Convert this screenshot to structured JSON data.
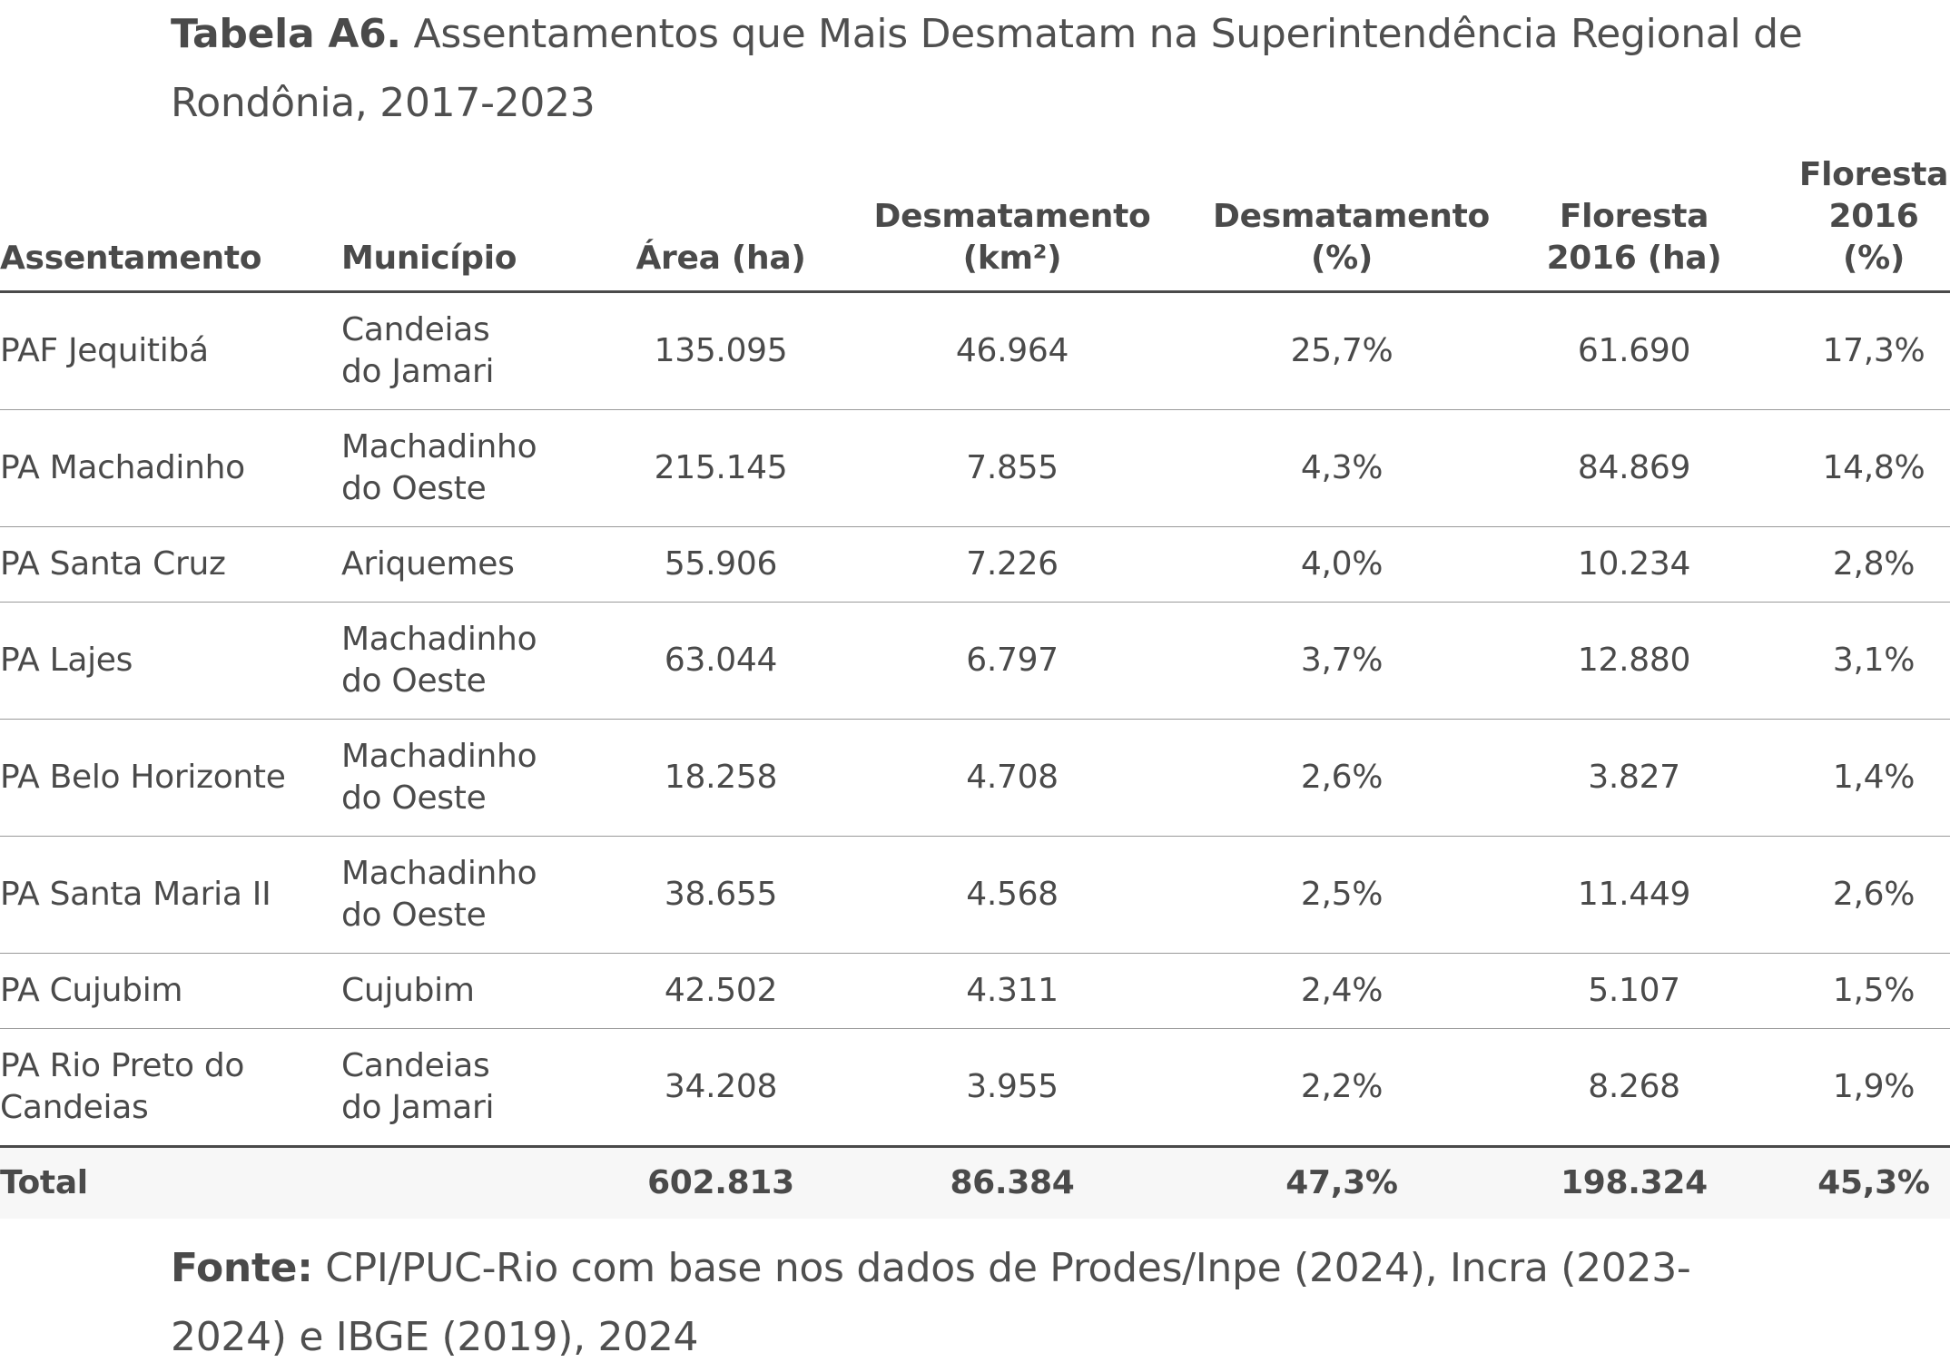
{
  "title": {
    "label": "Tabela A6.",
    "text": "Assentamentos que Mais Desmatam na Superintendência Regional de Rondônia, 2017-2023"
  },
  "table": {
    "headers": {
      "assentamento": "Assentamento",
      "municipio": "Município",
      "area": "Área (ha)",
      "desmatamento_km2_line1": "Desmatamento",
      "desmatamento_km2_line2": "(km²)",
      "desmatamento_pct_line1": "Desmatamento",
      "desmatamento_pct_line2": "(%)",
      "floresta_ha_line1": "Floresta",
      "floresta_ha_line2": "2016 (ha)",
      "floresta_pct_line1": "Floresta",
      "floresta_pct_line2": "2016 (%)"
    },
    "rows": [
      {
        "assentamento": "PAF Jequitibá",
        "municipio_1": "Candeias",
        "municipio_2": "do Jamari",
        "area": "135.095",
        "desm_km2": "46.964",
        "desm_pct": "25,7%",
        "flor_ha": "61.690",
        "flor_pct": "17,3%"
      },
      {
        "assentamento": "PA Machadinho",
        "municipio_1": "Machadinho",
        "municipio_2": "do Oeste",
        "area": "215.145",
        "desm_km2": "7.855",
        "desm_pct": "4,3%",
        "flor_ha": "84.869",
        "flor_pct": "14,8%"
      },
      {
        "assentamento": "PA Santa Cruz",
        "municipio_1": "Ariquemes",
        "municipio_2": "",
        "area": "55.906",
        "desm_km2": "7.226",
        "desm_pct": "4,0%",
        "flor_ha": "10.234",
        "flor_pct": "2,8%"
      },
      {
        "assentamento": "PA Lajes",
        "municipio_1": "Machadinho",
        "municipio_2": "do Oeste",
        "area": "63.044",
        "desm_km2": "6.797",
        "desm_pct": "3,7%",
        "flor_ha": "12.880",
        "flor_pct": "3,1%"
      },
      {
        "assentamento": "PA Belo Horizonte",
        "municipio_1": "Machadinho",
        "municipio_2": "do Oeste",
        "area": "18.258",
        "desm_km2": "4.708",
        "desm_pct": "2,6%",
        "flor_ha": "3.827",
        "flor_pct": "1,4%"
      },
      {
        "assentamento": "PA Santa Maria II",
        "municipio_1": "Machadinho",
        "municipio_2": "do Oeste",
        "area": "38.655",
        "desm_km2": "4.568",
        "desm_pct": "2,5%",
        "flor_ha": "11.449",
        "flor_pct": "2,6%"
      },
      {
        "assentamento": "PA Cujubim",
        "municipio_1": "Cujubim",
        "municipio_2": "",
        "area": "42.502",
        "desm_km2": "4.311",
        "desm_pct": "2,4%",
        "flor_ha": "5.107",
        "flor_pct": "1,5%"
      },
      {
        "assentamento_1": "PA Rio Preto do",
        "assentamento_2": "Candeias",
        "municipio_1": "Candeias",
        "municipio_2": "do Jamari",
        "area": "34.208",
        "desm_km2": "3.955",
        "desm_pct": "2,2%",
        "flor_ha": "8.268",
        "flor_pct": "1,9%"
      }
    ],
    "total": {
      "label": "Total",
      "area": "602.813",
      "desm_km2": "86.384",
      "desm_pct": "47,3%",
      "flor_ha": "198.324",
      "flor_pct": "45,3%"
    }
  },
  "source": {
    "label": "Fonte:",
    "text": "CPI/PUC-Rio com base nos dados de Prodes/Inpe (2024), Incra (2023-2024) e IBGE (2019), 2024"
  }
}
